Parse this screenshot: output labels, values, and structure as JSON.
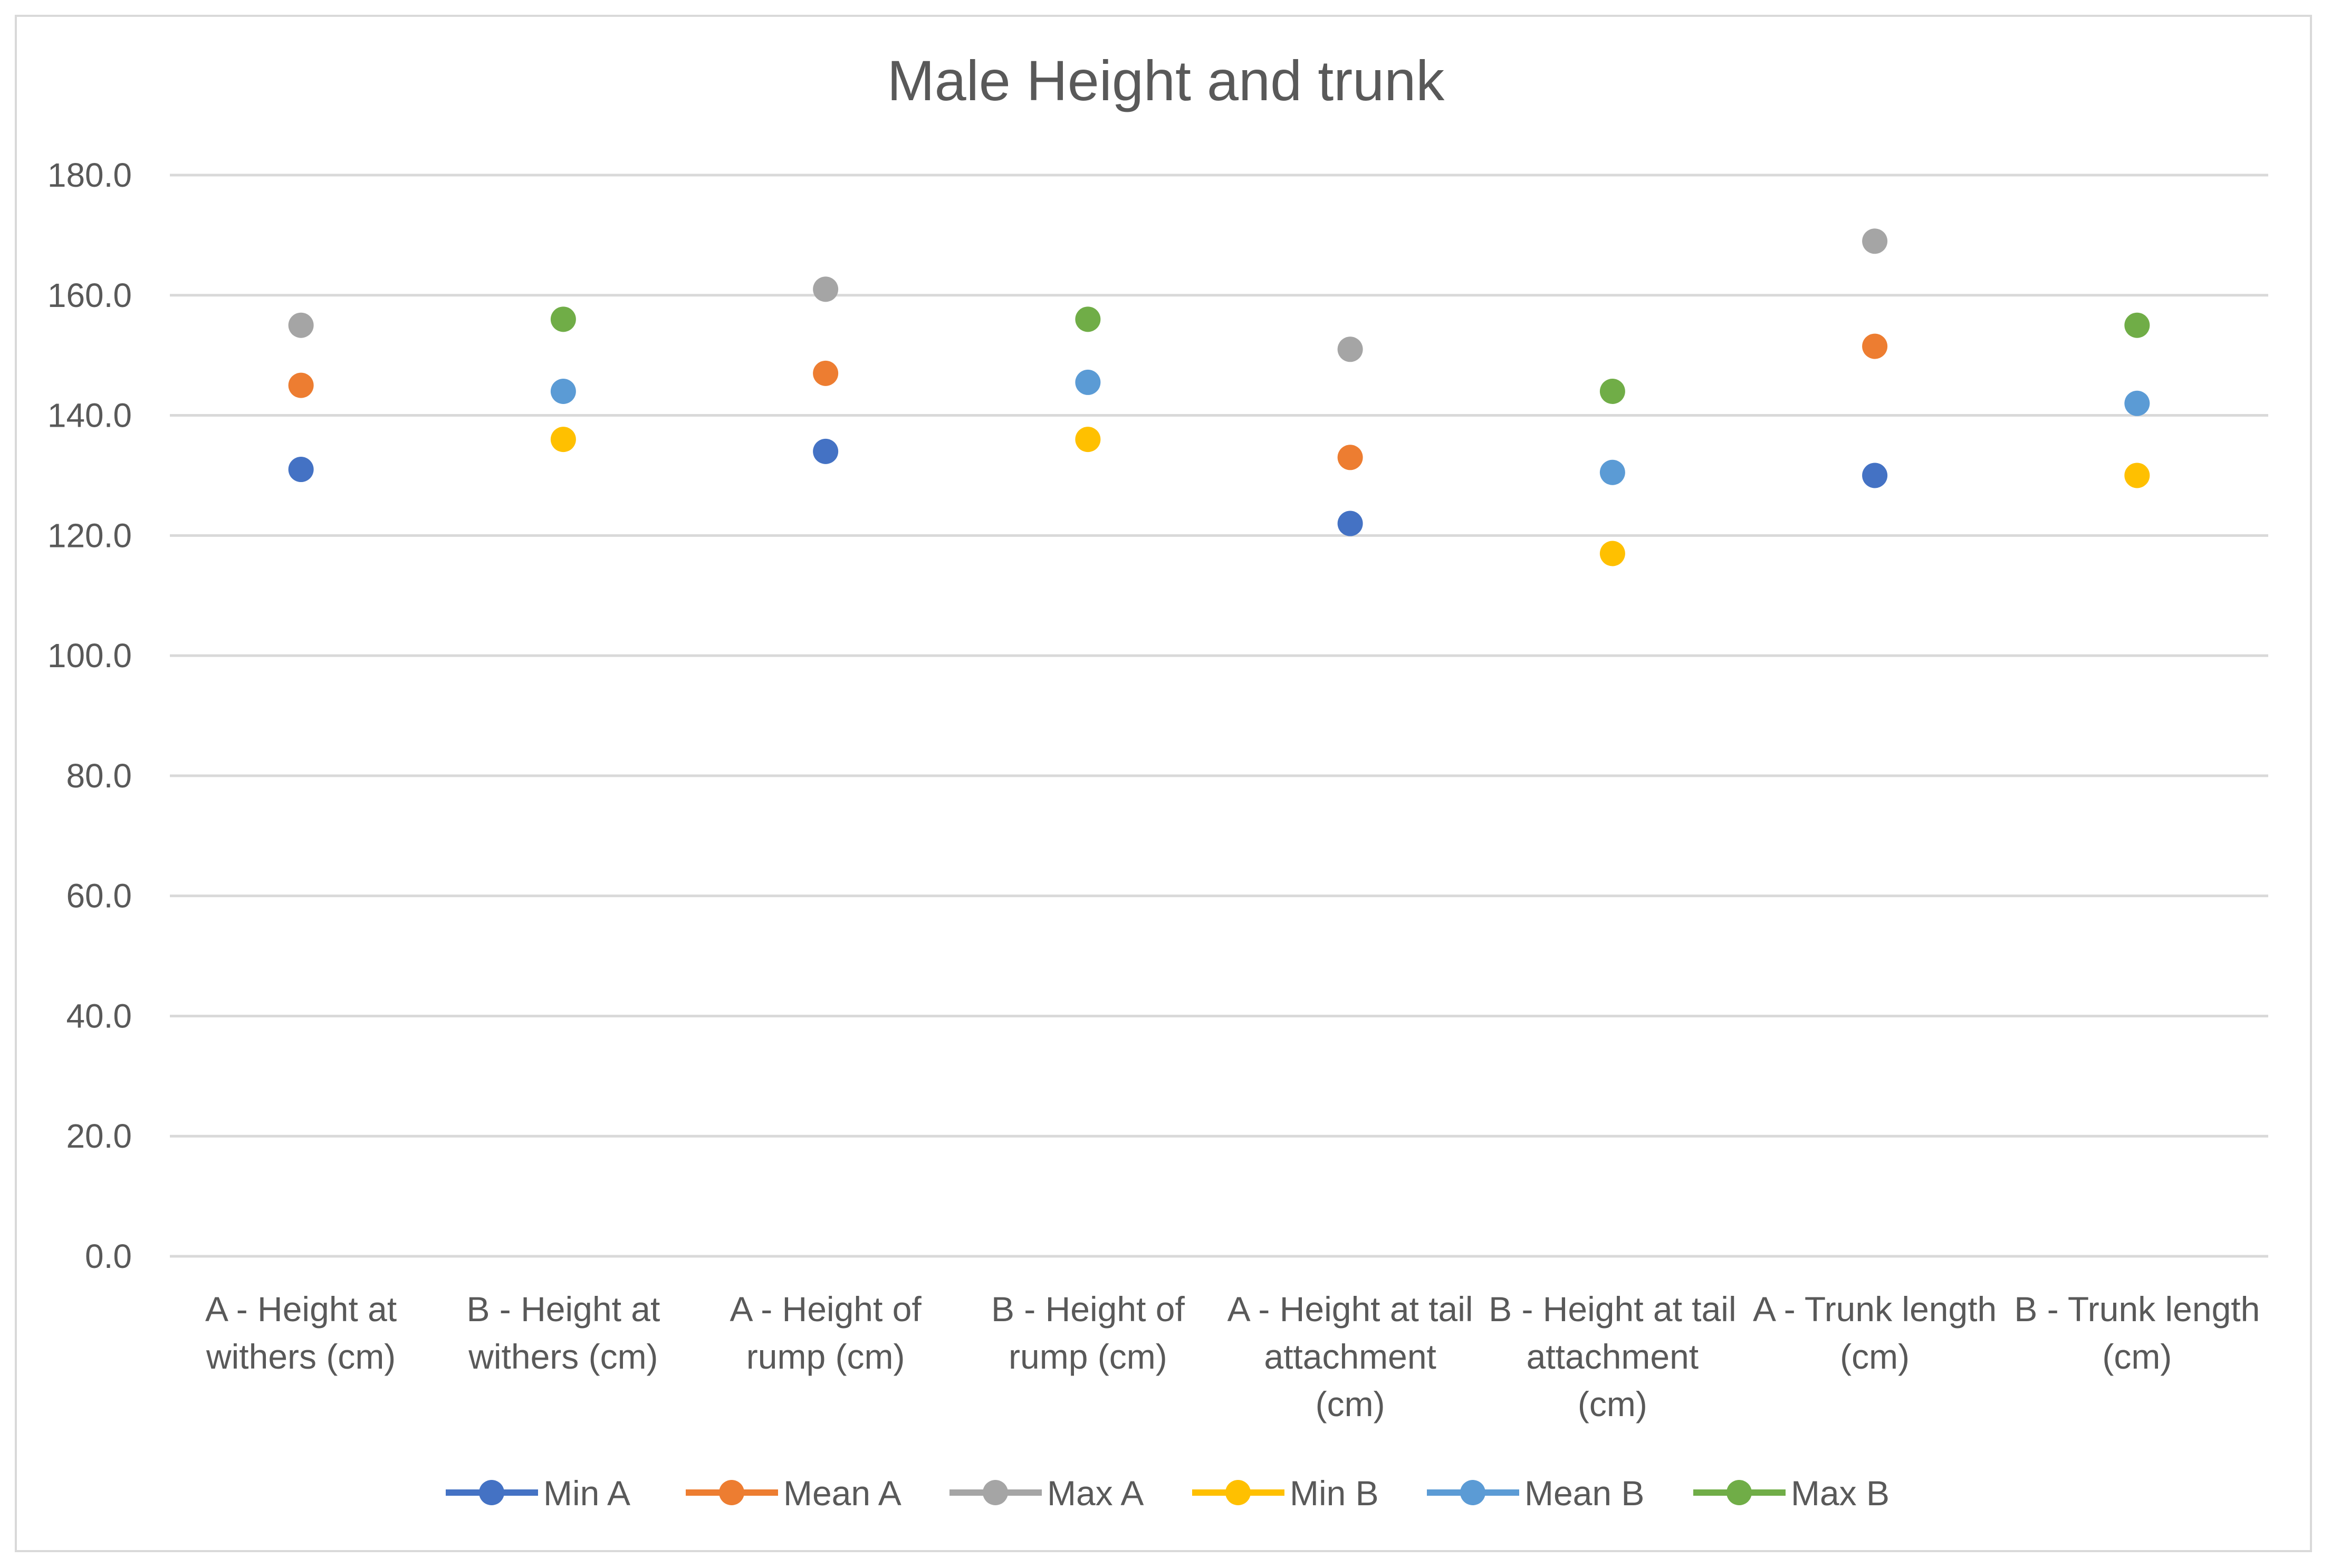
{
  "chart_data": {
    "type": "scatter",
    "title": "Male Height and trunk",
    "xlabel": "",
    "ylabel": "",
    "ylim": [
      0,
      180
    ],
    "ytick_step": 20,
    "ytick_labels": [
      "0.0",
      "20.0",
      "40.0",
      "60.0",
      "80.0",
      "100.0",
      "120.0",
      "140.0",
      "160.0",
      "180.0"
    ],
    "grid": true,
    "legend_position": "bottom",
    "categories": [
      [
        "A - Height at",
        "withers (cm)"
      ],
      [
        "B - Height at",
        "withers (cm)"
      ],
      [
        "A - Height of",
        "rump (cm)"
      ],
      [
        "B - Height of",
        "rump (cm)"
      ],
      [
        "A - Height at tail",
        "attachment",
        "(cm)"
      ],
      [
        "B - Height at tail",
        "attachment",
        "(cm)"
      ],
      [
        "A - Trunk length",
        "(cm)"
      ],
      [
        "B - Trunk length",
        "(cm)"
      ]
    ],
    "series": [
      {
        "name": "Min A",
        "color": "#4472C4",
        "values": [
          131,
          null,
          134,
          null,
          122,
          null,
          130,
          null
        ]
      },
      {
        "name": "Mean A",
        "color": "#ED7D31",
        "values": [
          145,
          null,
          147,
          null,
          133,
          null,
          151.5,
          null
        ]
      },
      {
        "name": "Max A",
        "color": "#A5A5A5",
        "values": [
          155,
          null,
          161,
          null,
          151,
          null,
          169,
          null
        ]
      },
      {
        "name": "Min B",
        "color": "#FFC000",
        "values": [
          null,
          136,
          null,
          136,
          null,
          117,
          null,
          130
        ]
      },
      {
        "name": "Mean B",
        "color": "#5B9BD5",
        "values": [
          null,
          144,
          null,
          145.5,
          null,
          130.5,
          null,
          142
        ]
      },
      {
        "name": "Max B",
        "color": "#70AD47",
        "values": [
          null,
          156,
          null,
          156,
          null,
          144,
          null,
          155
        ]
      }
    ]
  }
}
